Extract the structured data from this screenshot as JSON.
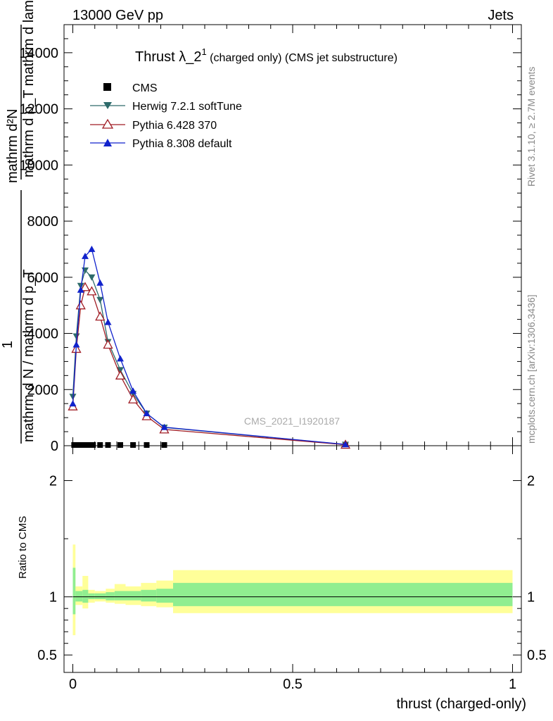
{
  "header": {
    "left": "13000 GeV pp",
    "right": "Jets"
  },
  "side_labels": {
    "rivet": "Rivet 3.1.10, ≥ 2.7M events",
    "mcplots": "mcplots.cern.ch [arXiv:1306.3436]"
  },
  "watermark": "CMS_2021_I1920187",
  "chart_data": [
    {
      "type": "line",
      "title": "Thrust λ_2¹ (charged only) (CMS jet substructure)",
      "title_main": "Thrust λ_2",
      "title_sup": "1",
      "title_rest": " (charged only) (CMS jet substructure)",
      "ylabel_top": "mathrm d²N",
      "ylabel_top_sub": "mathrm d p_T mathrm d lambda",
      "ylabel_bottom": "mathrm d N / mathrm d p_T",
      "ylabel_one": "1",
      "xlim": [
        -0.02,
        1.02
      ],
      "ylim": [
        0,
        15000
      ],
      "yticks": [
        {
          "v": 0,
          "label": "0"
        },
        {
          "v": 2000,
          "label": "2000"
        },
        {
          "v": 4000,
          "label": "4000"
        },
        {
          "v": 6000,
          "label": "6000"
        },
        {
          "v": 8000,
          "label": "8000"
        },
        {
          "v": 10000,
          "label": "10000"
        },
        {
          "v": 12000,
          "label": "12000"
        },
        {
          "v": 14000,
          "label": "14000"
        }
      ],
      "legend_position": "top-left",
      "series": [
        {
          "name": "CMS",
          "color": "#000000",
          "marker": "square",
          "x": [
            0.003,
            0.01,
            0.017,
            0.023,
            0.03,
            0.038,
            0.046,
            0.062,
            0.08,
            0.108,
            0.137,
            0.168,
            0.208,
            0.62
          ],
          "y": [
            0,
            0,
            0,
            0,
            0,
            0,
            0,
            0,
            0,
            0,
            0,
            0,
            0,
            0
          ]
        },
        {
          "name": "Herwig 7.2.1 softTune",
          "color": "#2e6b6b",
          "marker": "triangle-down",
          "x": [
            0.0,
            0.008,
            0.018,
            0.028,
            0.043,
            0.062,
            0.08,
            0.108,
            0.137,
            0.168,
            0.208,
            0.62
          ],
          "y": [
            1750,
            3900,
            5700,
            6250,
            6000,
            5200,
            3700,
            2700,
            1850,
            1150,
            650,
            40
          ]
        },
        {
          "name": "Pythia 6.428 370",
          "color": "#a01c24",
          "marker": "triangle-up-open",
          "x": [
            0.0,
            0.008,
            0.018,
            0.028,
            0.043,
            0.062,
            0.08,
            0.108,
            0.137,
            0.168,
            0.208,
            0.62
          ],
          "y": [
            1400,
            3450,
            5000,
            5650,
            5500,
            4600,
            3600,
            2500,
            1650,
            1050,
            580,
            35
          ]
        },
        {
          "name": "Pythia 8.308 default",
          "color": "#1122cc",
          "marker": "triangle-up",
          "x": [
            0.0,
            0.008,
            0.018,
            0.028,
            0.043,
            0.062,
            0.08,
            0.108,
            0.137,
            0.168,
            0.208,
            0.62
          ],
          "y": [
            1500,
            3600,
            5550,
            6750,
            7000,
            5800,
            4400,
            3100,
            1950,
            1150,
            660,
            45
          ]
        }
      ]
    },
    {
      "type": "area",
      "ylabel": "Ratio to CMS",
      "xlabel": "thrust (charged-only)",
      "xlim": [
        -0.02,
        1.02
      ],
      "ylim": [
        0.35,
        2.3
      ],
      "xticks": [
        {
          "v": 0,
          "label": "0"
        },
        {
          "v": 0.5,
          "label": "0.5"
        },
        {
          "v": 1,
          "label": "1"
        }
      ],
      "yticks": [
        {
          "v": 0.5,
          "label": "0.5"
        },
        {
          "v": 1,
          "label": "1"
        },
        {
          "v": 2,
          "label": "2"
        }
      ],
      "bands": {
        "color_outer": "#ffff99",
        "color_inner": "#90ee90",
        "bins": [
          {
            "x0": 0.0,
            "x1": 0.006,
            "outer": [
              0.67,
              1.45
            ],
            "inner": [
              0.85,
              1.25
            ]
          },
          {
            "x0": 0.006,
            "x1": 0.022,
            "outer": [
              0.93,
              1.09
            ],
            "inner": [
              0.96,
              1.05
            ]
          },
          {
            "x0": 0.022,
            "x1": 0.035,
            "outer": [
              0.9,
              1.18
            ],
            "inner": [
              0.95,
              1.06
            ]
          },
          {
            "x0": 0.035,
            "x1": 0.05,
            "outer": [
              0.95,
              1.06
            ],
            "inner": [
              0.98,
              1.03
            ]
          },
          {
            "x0": 0.05,
            "x1": 0.075,
            "outer": [
              0.96,
              1.05
            ],
            "inner": [
              0.98,
              1.03
            ]
          },
          {
            "x0": 0.075,
            "x1": 0.095,
            "outer": [
              0.95,
              1.07
            ],
            "inner": [
              0.97,
              1.04
            ]
          },
          {
            "x0": 0.095,
            "x1": 0.12,
            "outer": [
              0.94,
              1.11
            ],
            "inner": [
              0.97,
              1.05
            ]
          },
          {
            "x0": 0.12,
            "x1": 0.155,
            "outer": [
              0.93,
              1.09
            ],
            "inner": [
              0.97,
              1.05
            ]
          },
          {
            "x0": 0.155,
            "x1": 0.19,
            "outer": [
              0.92,
              1.12
            ],
            "inner": [
              0.96,
              1.06
            ]
          },
          {
            "x0": 0.19,
            "x1": 0.228,
            "outer": [
              0.91,
              1.14
            ],
            "inner": [
              0.95,
              1.07
            ]
          },
          {
            "x0": 0.228,
            "x1": 1.0,
            "outer": [
              0.86,
              1.23
            ],
            "inner": [
              0.92,
              1.12
            ]
          }
        ]
      },
      "reference_line": 1.0
    }
  ]
}
